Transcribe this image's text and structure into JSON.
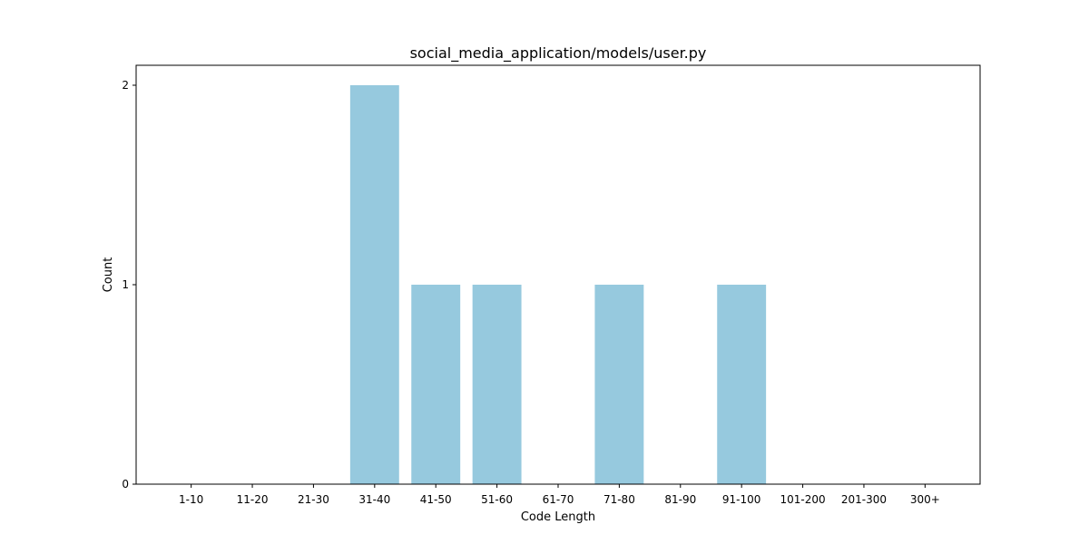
{
  "chart_data": {
    "type": "bar",
    "title": "social_media_application/models/user.py",
    "xlabel": "Code Length",
    "ylabel": "Count",
    "categories": [
      "1-10",
      "11-20",
      "21-30",
      "31-40",
      "41-50",
      "51-60",
      "61-70",
      "71-80",
      "81-90",
      "91-100",
      "101-200",
      "201-300",
      "300+"
    ],
    "values": [
      0,
      0,
      0,
      2,
      1,
      1,
      0,
      1,
      0,
      1,
      0,
      0,
      0
    ],
    "yticks": [
      "0",
      "1",
      "2"
    ],
    "ylim": [
      0,
      2.1
    ],
    "bar_color": "#96c9de",
    "grid": false,
    "legend": "none"
  }
}
